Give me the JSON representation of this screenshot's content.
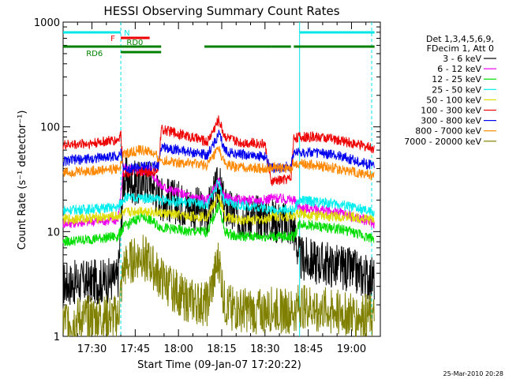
{
  "chart_data": {
    "type": "line",
    "title": "HESSI Observing Summary Count Rates",
    "xlabel": "Start Time (09-Jan-07 17:20:22)",
    "ylabel": "Count Rate (s⁻¹ detector⁻¹)",
    "y_scale": "log",
    "ylim": [
      1,
      1000
    ],
    "xlim_minutes": [
      -10,
      100
    ],
    "x_ticks": [
      {
        "label": "17:30",
        "t": 0
      },
      {
        "label": "17:45",
        "t": 15
      },
      {
        "label": "18:00",
        "t": 30
      },
      {
        "label": "18:15",
        "t": 45
      },
      {
        "label": "18:30",
        "t": 60
      },
      {
        "label": "18:45",
        "t": 75
      },
      {
        "label": "19:00",
        "t": 90
      }
    ],
    "y_ticks": [
      {
        "label": "1",
        "v": 1
      },
      {
        "label": "10",
        "v": 10
      },
      {
        "label": "100",
        "v": 100
      },
      {
        "label": "1000",
        "v": 1000
      }
    ],
    "grid": false,
    "legend_position": "right",
    "legend_header": [
      "Det 1,3,4,5,6,9,",
      "FDecim 1, Att 0"
    ],
    "timestamp": "25-Mar-2010 20:28",
    "flags": [
      {
        "label": "N",
        "color": "#00e5e5",
        "segments": [
          [
            -10,
            10
          ],
          [
            72,
            98
          ]
        ]
      },
      {
        "label": "F",
        "color": "#ee0000",
        "segments": [
          [
            10,
            20
          ]
        ]
      },
      {
        "label": "RD0",
        "color": "#008000",
        "segments": [
          [
            -10,
            10
          ],
          [
            10,
            24
          ],
          [
            39,
            62
          ],
          [
            62,
            69
          ],
          [
            70,
            98
          ]
        ]
      },
      {
        "label": "RD6",
        "color": "#008000",
        "segments": [
          [
            10,
            24
          ]
        ]
      }
    ],
    "vlines": [
      {
        "t": 10,
        "color": "#00e5e5",
        "style": "dashed"
      },
      {
        "t": 72,
        "color": "#00e5e5",
        "style": "solid"
      },
      {
        "t": 97,
        "color": "#00e5e5",
        "style": "dashed"
      }
    ],
    "series": [
      {
        "name": "3 - 6 keV",
        "color": "#000000",
        "values": [
          [
            -10,
            3.2
          ],
          [
            0,
            3.3
          ],
          [
            9,
            3.5
          ],
          [
            11,
            32
          ],
          [
            17,
            28
          ],
          [
            20,
            32
          ],
          [
            22,
            25
          ],
          [
            24,
            21
          ],
          [
            33,
            18
          ],
          [
            40,
            15
          ],
          [
            44,
            28
          ],
          [
            46,
            17
          ],
          [
            50,
            14
          ],
          [
            60,
            14
          ],
          [
            62,
            13
          ],
          [
            68,
            12
          ],
          [
            70,
            11
          ],
          [
            72,
            5.5
          ],
          [
            80,
            5
          ],
          [
            87,
            4.5
          ],
          [
            98,
            3.5
          ]
        ]
      },
      {
        "name": "6 - 12 keV",
        "color": "#ee00ee",
        "values": [
          [
            -10,
            12
          ],
          [
            0,
            12.5
          ],
          [
            9,
            13
          ],
          [
            11,
            40
          ],
          [
            17,
            38
          ],
          [
            20,
            40
          ],
          [
            22,
            32
          ],
          [
            24,
            27
          ],
          [
            33,
            22
          ],
          [
            40,
            20
          ],
          [
            44,
            30
          ],
          [
            46,
            21
          ],
          [
            50,
            20
          ],
          [
            60,
            20
          ],
          [
            62,
            21
          ],
          [
            70,
            20
          ],
          [
            72,
            17
          ],
          [
            80,
            16
          ],
          [
            87,
            15
          ],
          [
            98,
            12
          ]
        ]
      },
      {
        "name": "12 - 25 keV",
        "color": "#00dd00",
        "values": [
          [
            -10,
            8
          ],
          [
            0,
            8.5
          ],
          [
            9,
            9
          ],
          [
            11,
            11
          ],
          [
            17,
            14
          ],
          [
            20,
            13
          ],
          [
            24,
            11
          ],
          [
            33,
            10
          ],
          [
            40,
            10
          ],
          [
            44,
            18
          ],
          [
            46,
            10
          ],
          [
            50,
            9
          ],
          [
            60,
            9
          ],
          [
            62,
            9
          ],
          [
            70,
            9
          ],
          [
            72,
            12
          ],
          [
            80,
            11
          ],
          [
            87,
            10.5
          ],
          [
            98,
            8.5
          ]
        ]
      },
      {
        "name": "25 - 50 keV",
        "color": "#00eeee",
        "values": [
          [
            -10,
            16
          ],
          [
            0,
            16.5
          ],
          [
            9,
            17
          ],
          [
            11,
            21
          ],
          [
            17,
            21
          ],
          [
            20,
            21
          ],
          [
            24,
            20
          ],
          [
            33,
            19
          ],
          [
            40,
            18
          ],
          [
            44,
            30
          ],
          [
            46,
            19
          ],
          [
            50,
            18
          ],
          [
            60,
            17
          ],
          [
            62,
            16
          ],
          [
            70,
            16
          ],
          [
            72,
            20
          ],
          [
            80,
            19
          ],
          [
            87,
            18
          ],
          [
            98,
            15
          ]
        ]
      },
      {
        "name": "50 - 100 keV",
        "color": "#dddd00",
        "values": [
          [
            -10,
            13
          ],
          [
            0,
            13.5
          ],
          [
            9,
            14
          ],
          [
            11,
            15
          ],
          [
            17,
            16
          ],
          [
            20,
            15.5
          ],
          [
            24,
            15
          ],
          [
            33,
            14
          ],
          [
            40,
            14
          ],
          [
            44,
            22
          ],
          [
            46,
            14
          ],
          [
            50,
            13
          ],
          [
            60,
            13
          ],
          [
            62,
            14
          ],
          [
            70,
            14
          ],
          [
            72,
            15
          ],
          [
            80,
            14
          ],
          [
            87,
            14
          ],
          [
            98,
            13
          ]
        ]
      },
      {
        "name": "100 - 300 keV",
        "color": "#ee0000",
        "values": [
          [
            -10,
            67
          ],
          [
            0,
            70
          ],
          [
            9,
            75
          ],
          [
            10,
            85
          ],
          [
            11,
            37
          ],
          [
            20,
            37
          ],
          [
            23,
            37
          ],
          [
            24,
            95
          ],
          [
            33,
            82
          ],
          [
            40,
            72
          ],
          [
            44,
            118
          ],
          [
            46,
            82
          ],
          [
            50,
            72
          ],
          [
            60,
            69
          ],
          [
            62,
            30
          ],
          [
            68,
            32
          ],
          [
            69,
            32
          ],
          [
            70,
            80
          ],
          [
            80,
            80
          ],
          [
            87,
            73
          ],
          [
            98,
            62
          ]
        ]
      },
      {
        "name": "300 - 800 keV",
        "color": "#0000ee",
        "values": [
          [
            -10,
            47
          ],
          [
            0,
            50
          ],
          [
            9,
            53
          ],
          [
            10,
            57
          ],
          [
            11,
            40
          ],
          [
            20,
            42
          ],
          [
            23,
            42
          ],
          [
            24,
            65
          ],
          [
            33,
            58
          ],
          [
            40,
            54
          ],
          [
            44,
            85
          ],
          [
            46,
            60
          ],
          [
            50,
            55
          ],
          [
            60,
            52
          ],
          [
            62,
            40
          ],
          [
            68,
            42
          ],
          [
            69,
            42
          ],
          [
            70,
            58
          ],
          [
            80,
            56
          ],
          [
            87,
            52
          ],
          [
            98,
            42
          ]
        ]
      },
      {
        "name": "800 - 7000 keV",
        "color": "#ff8800",
        "values": [
          [
            -10,
            37
          ],
          [
            0,
            38
          ],
          [
            9,
            40
          ],
          [
            10,
            42
          ],
          [
            11,
            55
          ],
          [
            17,
            60
          ],
          [
            20,
            58
          ],
          [
            24,
            48
          ],
          [
            33,
            45
          ],
          [
            40,
            43
          ],
          [
            44,
            62
          ],
          [
            46,
            44
          ],
          [
            50,
            41
          ],
          [
            60,
            40
          ],
          [
            62,
            41
          ],
          [
            69,
            40
          ],
          [
            70,
            45
          ],
          [
            80,
            42
          ],
          [
            87,
            39
          ],
          [
            98,
            34
          ]
        ]
      },
      {
        "name": "7000 - 20000 keV",
        "color": "#808000",
        "values": [
          [
            -10,
            1.4
          ],
          [
            0,
            1.5
          ],
          [
            9,
            1.5
          ],
          [
            11,
            4.5
          ],
          [
            17,
            6
          ],
          [
            20,
            5
          ],
          [
            24,
            3.5
          ],
          [
            33,
            2.2
          ],
          [
            40,
            2
          ],
          [
            44,
            5.5
          ],
          [
            46,
            2
          ],
          [
            50,
            1.8
          ],
          [
            60,
            1.7
          ],
          [
            62,
            1.8
          ],
          [
            70,
            1.7
          ],
          [
            72,
            2
          ],
          [
            80,
            1.8
          ],
          [
            87,
            1.7
          ],
          [
            98,
            1.5
          ]
        ]
      }
    ]
  }
}
